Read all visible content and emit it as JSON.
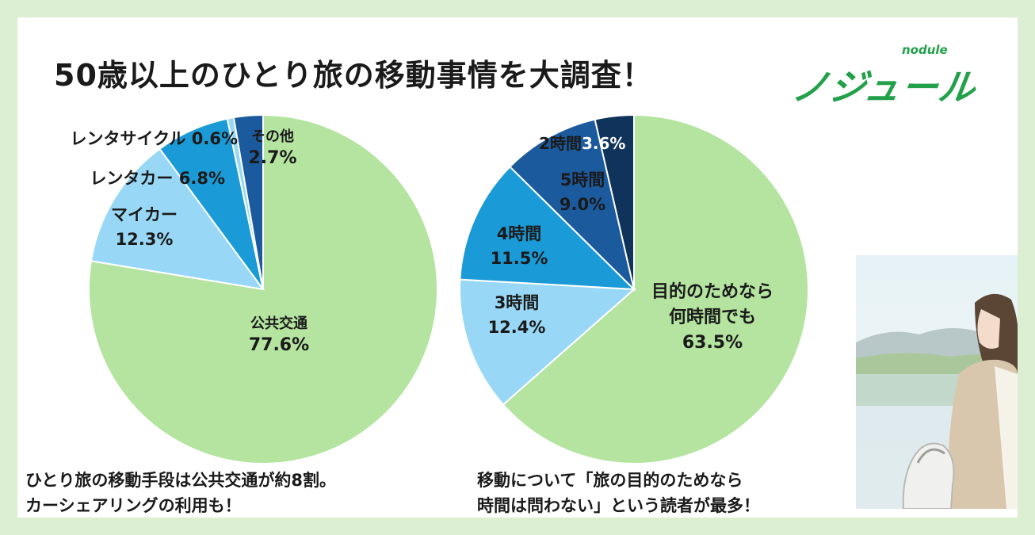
{
  "header": {
    "title": "50歳以上のひとり旅の移動事情を大調査！",
    "logo_text": "ノジュール",
    "logo_sub": "nodule"
  },
  "captions": {
    "left_line1": "ひとり旅の移動手段は公共交通が約8割。",
    "left_line2": "カーシェアリングの利用も！",
    "right_line1": "移動について「旅の目的のためなら",
    "right_line2": "時間は問わない」という読者が最多！"
  },
  "colors": {
    "green": "#b4e4a0",
    "light_blue": "#98d8f6",
    "mid_blue": "#1a9ad6",
    "dark_blue": "#1c5a9e",
    "navy": "#10335c",
    "page_bg": "#dcefd3"
  },
  "chart_data": [
    {
      "type": "pie",
      "slices": [
        {
          "label": "公共交通",
          "value": 77.6,
          "value_label": "77.6%",
          "color": "#b4e4a0"
        },
        {
          "label": "マイカー",
          "value": 12.3,
          "value_label": "12.3%",
          "color": "#98d8f6"
        },
        {
          "label": "レンタカー",
          "value": 6.8,
          "value_label": "6.8%",
          "color": "#1a9ad6"
        },
        {
          "label": "レンタサイクル",
          "value": 0.6,
          "value_label": "0.6%",
          "color": "#98d8f6"
        },
        {
          "label": "その他",
          "value": 2.7,
          "value_label": "2.7%",
          "color": "#1c5a9e"
        }
      ]
    },
    {
      "type": "pie",
      "slices": [
        {
          "label": "目的のためなら何時間でも",
          "value": 63.5,
          "value_label": "63.5%",
          "color": "#b4e4a0"
        },
        {
          "label": "3時間",
          "value": 12.4,
          "value_label": "12.4%",
          "color": "#98d8f6"
        },
        {
          "label": "4時間",
          "value": 11.5,
          "value_label": "11.5%",
          "color": "#1a9ad6"
        },
        {
          "label": "5時間",
          "value": 9.0,
          "value_label": "9.0%",
          "color": "#1c5a9e"
        },
        {
          "label": "2時間",
          "value": 3.6,
          "value_label": "3.6%",
          "color": "#10335c"
        }
      ]
    }
  ]
}
